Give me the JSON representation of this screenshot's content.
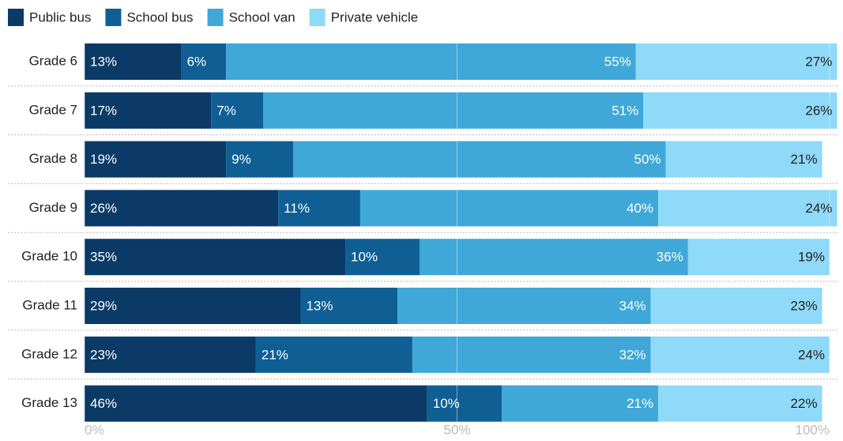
{
  "chart_data": {
    "type": "stacked-bar-horizontal",
    "categories": [
      "Grade 6",
      "Grade 7",
      "Grade 8",
      "Grade 9",
      "Grade 10",
      "Grade 11",
      "Grade 12",
      "Grade 13"
    ],
    "series": [
      {
        "name": "Public bus",
        "color": "#0b3a66",
        "values": [
          13,
          17,
          19,
          26,
          35,
          29,
          23,
          46
        ],
        "value_labels": [
          "13%",
          "17%",
          "19%",
          "26%",
          "35%",
          "29%",
          "23%",
          "46%"
        ]
      },
      {
        "name": "School bus",
        "color": "#0f5f95",
        "values": [
          6,
          7,
          9,
          11,
          10,
          13,
          21,
          10
        ],
        "value_labels": [
          "6%",
          "7%",
          "9%",
          "11%",
          "10%",
          "13%",
          "21%",
          "10%"
        ]
      },
      {
        "name": "School van",
        "color": "#3fa8d8",
        "values": [
          55,
          51,
          50,
          40,
          36,
          34,
          32,
          21
        ],
        "value_labels": [
          "55%",
          "51%",
          "50%",
          "40%",
          "36%",
          "34%",
          "32%",
          "21%"
        ]
      },
      {
        "name": "Private vehicle",
        "color": "#8fd9f9",
        "values": [
          27,
          26,
          21,
          24,
          19,
          23,
          24,
          22
        ],
        "value_labels": [
          "27%",
          "26%",
          "21%",
          "24%",
          "19%",
          "23%",
          "24%",
          "22%"
        ]
      }
    ],
    "xlim": [
      0,
      100
    ],
    "xticks": [
      {
        "value": 0,
        "label": "0%"
      },
      {
        "value": 50,
        "label": "50%"
      },
      {
        "value": 100,
        "label": "100%"
      }
    ],
    "grid": true
  }
}
